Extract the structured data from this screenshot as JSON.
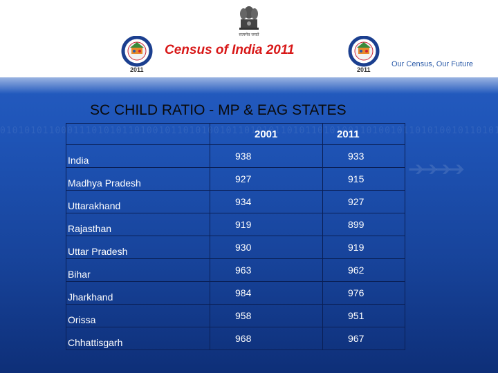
{
  "header": {
    "title": "Census of India 2011",
    "tagline": "Our Census, Our Future",
    "logo_year": "2011",
    "emblem_text": "सत्यमेव जयते"
  },
  "slide": {
    "heading": "SC CHILD RATIO - MP & EAG STATES"
  },
  "table": {
    "headers": [
      "",
      "2001",
      "2011"
    ],
    "rows": [
      {
        "state": "India",
        "v2001": "938",
        "v2011": "933"
      },
      {
        "state": "Madhya Pradesh",
        "v2001": "927",
        "v2011": "915"
      },
      {
        "state": "Uttarakhand",
        "v2001": "934",
        "v2011": "927"
      },
      {
        "state": "Rajasthan",
        "v2001": "919",
        "v2011": "899"
      },
      {
        "state": "Uttar Pradesh",
        "v2001": "930",
        "v2011": "919"
      },
      {
        "state": "Bihar",
        "v2001": "963",
        "v2011": "962"
      },
      {
        "state": "Jharkhand",
        "v2001": "984",
        "v2011": "976"
      },
      {
        "state": "Orissa",
        "v2001": "958",
        "v2011": "951"
      },
      {
        "state": "Chhattisgarh",
        "v2001": "968",
        "v2011": "967"
      }
    ]
  },
  "colors": {
    "title": "#d81818",
    "tagline": "#2a5aa8",
    "background": "#1f55b8",
    "table_text": "#ffffff"
  }
}
